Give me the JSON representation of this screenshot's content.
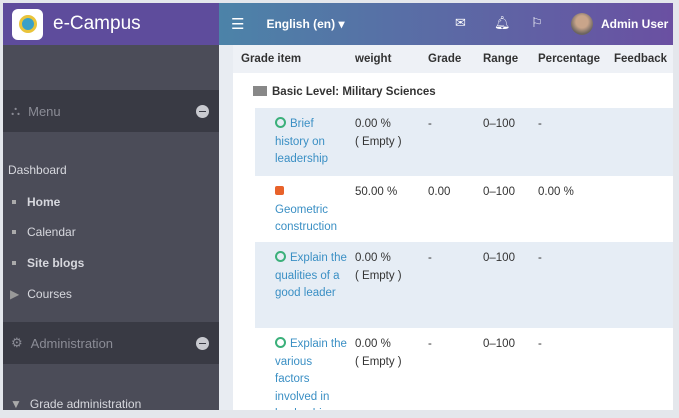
{
  "brand": {
    "name": "e-Campus"
  },
  "topbar": {
    "language": "English (en) ▾",
    "user": "Admin User",
    "icons": [
      "menu-icon",
      "mail-icon",
      "bell-icon",
      "flag-icon"
    ]
  },
  "sidebar": {
    "menu": "Menu",
    "dashboard": "Dashboard",
    "items": [
      {
        "label": "Home"
      },
      {
        "label": "Calendar"
      },
      {
        "label": "Site blogs"
      },
      {
        "label": "Courses"
      }
    ],
    "administration": "Administration",
    "grade_admin": "Grade administration"
  },
  "table": {
    "headers": [
      "Grade item",
      "weight",
      "Grade",
      "Range",
      "Percentage",
      "Feedback"
    ],
    "category": "Basic Level: Military Sciences",
    "rows": [
      {
        "name": "Brief history on leadership",
        "weight": "0.00 %",
        "weight2": "( Empty )",
        "grade": "-",
        "range": "0–100",
        "percentage": "-",
        "type": "assignment"
      },
      {
        "name": "Geometric construction",
        "weight": "50.00 %",
        "weight2": "",
        "grade": "0.00",
        "range": "0–100",
        "percentage": "0.00 %",
        "type": "resource"
      },
      {
        "name": "Explain the qualities of a good leader",
        "weight": "0.00 %",
        "weight2": "( Empty )",
        "grade": "-",
        "range": "0–100",
        "percentage": "-",
        "type": "assignment"
      },
      {
        "name": "Explain the various factors involved in leadership",
        "weight": "0.00 %",
        "weight2": "( Empty )",
        "grade": "-",
        "range": "0–100",
        "percentage": "-",
        "type": "assignment"
      }
    ]
  }
}
